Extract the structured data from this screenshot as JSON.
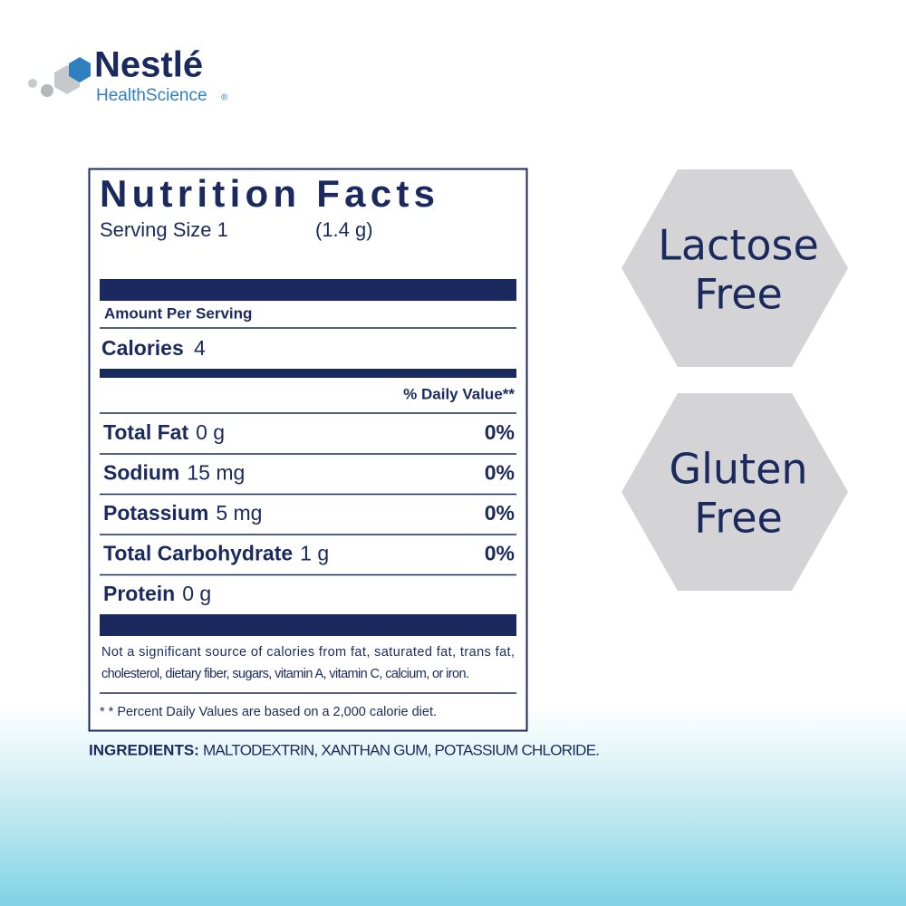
{
  "logo": {
    "brand": "Nestlé",
    "division": "HealthScience",
    "mark": "®"
  },
  "label": {
    "title": "Nutrition Facts",
    "serving_size": "Serving Size 1",
    "serving_weight": "(1.4 g)",
    "amount_per_serving": "Amount Per Serving",
    "calories_label": "Calories",
    "calories_value": "4",
    "daily_value_header": "% Daily Value**",
    "rows": [
      {
        "name": "Total Fat",
        "amount": "0 g",
        "dv": "0%"
      },
      {
        "name": "Sodium",
        "amount": "15 mg",
        "dv": "0%"
      },
      {
        "name": "Potassium",
        "amount": "5 mg",
        "dv": "0%"
      },
      {
        "name": "Total Carbohydrate",
        "amount": "1 g",
        "dv": "0%"
      },
      {
        "name": "Protein",
        "amount": "0 g"
      }
    ],
    "footnote_lines": [
      "Not a significant source of calories from fat, saturated fat, trans fat,",
      "cholesterol, dietary fiber, sugars, vitamin A, vitamin C, calcium, or iron."
    ],
    "dv_note": "* * Percent Daily Values are based on a 2,000 calorie diet."
  },
  "ingredients": {
    "label": "INGREDIENTS:",
    "text": "MALTODEXTRIN, XANTHAN GUM, POTASSIUM CHLORIDE."
  },
  "badges": [
    {
      "lines": [
        "Lactose",
        "Free"
      ]
    },
    {
      "lines": [
        "Gluten",
        "Free"
      ]
    }
  ]
}
